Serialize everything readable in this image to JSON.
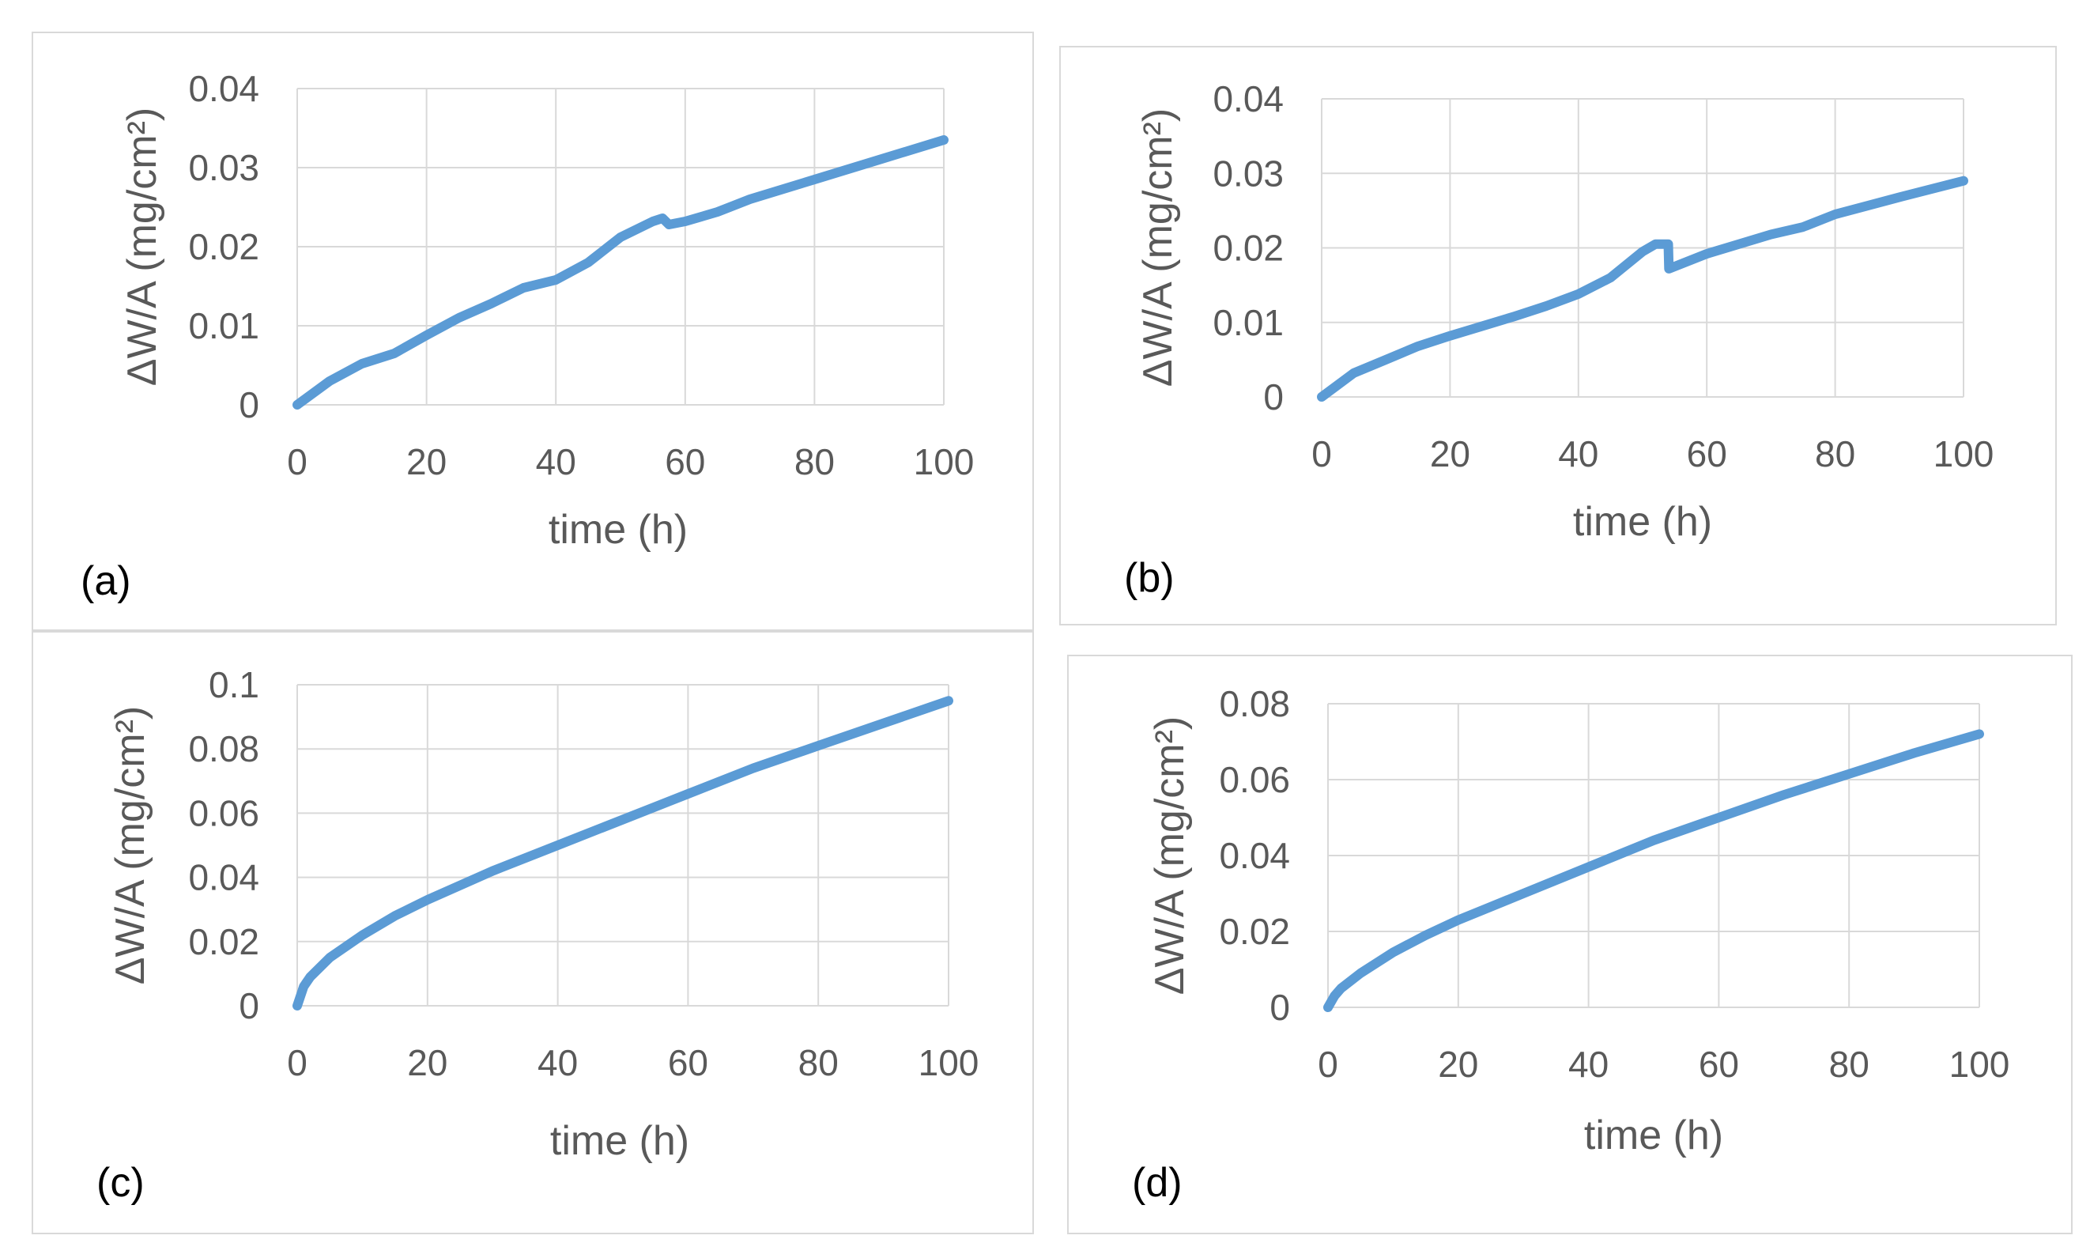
{
  "chart_data": [
    {
      "type": "line",
      "panel_label": "(a)",
      "xlabel": "time (h)",
      "ylabel": "ΔW/A (mg/cm²)",
      "xlim": [
        0,
        100
      ],
      "ylim": [
        0,
        0.04
      ],
      "x_ticks": [
        "0",
        "20",
        "40",
        "60",
        "80",
        "100"
      ],
      "y_ticks": [
        "0",
        "0.01",
        "0.02",
        "0.03",
        "0.04"
      ],
      "series": [
        {
          "name": "ΔW/A",
          "color": "#5b9bd5",
          "x": [
            0,
            5,
            10,
            15,
            20,
            25,
            30,
            35,
            40,
            45,
            50,
            55,
            56.5,
            57.5,
            60,
            65,
            70,
            80,
            90,
            100
          ],
          "y": [
            0,
            0.003,
            0.0052,
            0.0065,
            0.0088,
            0.011,
            0.0128,
            0.0148,
            0.0158,
            0.018,
            0.0212,
            0.0232,
            0.0236,
            0.0228,
            0.0232,
            0.0244,
            0.026,
            0.0285,
            0.031,
            0.0335
          ]
        }
      ]
    },
    {
      "type": "line",
      "panel_label": "(b)",
      "xlabel": "time (h)",
      "ylabel": "ΔW/A (mg/cm²)",
      "xlim": [
        0,
        100
      ],
      "ylim": [
        0,
        0.04
      ],
      "x_ticks": [
        "0",
        "20",
        "40",
        "60",
        "80",
        "100"
      ],
      "y_ticks": [
        "0",
        "0.01",
        "0.02",
        "0.03",
        "0.04"
      ],
      "series": [
        {
          "name": "ΔW/A",
          "color": "#5b9bd5",
          "x": [
            0,
            5,
            10,
            15,
            20,
            25,
            30,
            35,
            40,
            45,
            50,
            52,
            54,
            54.1,
            60,
            65,
            70,
            75,
            80,
            90,
            100
          ],
          "y": [
            0,
            0.0032,
            0.005,
            0.0068,
            0.0082,
            0.0095,
            0.0108,
            0.0122,
            0.0138,
            0.016,
            0.0195,
            0.0205,
            0.0205,
            0.0172,
            0.0192,
            0.0205,
            0.0218,
            0.0228,
            0.0245,
            0.0268,
            0.029
          ]
        }
      ]
    },
    {
      "type": "line",
      "panel_label": "(c)",
      "xlabel": "time (h)",
      "ylabel": "ΔW/A (mg/cm²)",
      "xlim": [
        0,
        100
      ],
      "ylim": [
        0,
        0.1
      ],
      "x_ticks": [
        "0",
        "20",
        "40",
        "60",
        "80",
        "100"
      ],
      "y_ticks": [
        "0",
        "0.02",
        "0.04",
        "0.06",
        "0.08",
        "0.1"
      ],
      "series": [
        {
          "name": "ΔW/A",
          "color": "#5b9bd5",
          "x": [
            0,
            1,
            2,
            5,
            10,
            15,
            20,
            30,
            40,
            50,
            60,
            70,
            80,
            90,
            100
          ],
          "y": [
            0,
            0.006,
            0.009,
            0.015,
            0.022,
            0.028,
            0.033,
            0.042,
            0.05,
            0.058,
            0.066,
            0.074,
            0.081,
            0.088,
            0.095
          ]
        }
      ]
    },
    {
      "type": "line",
      "panel_label": "(d)",
      "xlabel": "time (h)",
      "ylabel": "ΔW/A (mg/cm²)",
      "xlim": [
        0,
        100
      ],
      "ylim": [
        0,
        0.08
      ],
      "x_ticks": [
        "0",
        "20",
        "40",
        "60",
        "80",
        "100"
      ],
      "y_ticks": [
        "0",
        "0.02",
        "0.04",
        "0.06",
        "0.08"
      ],
      "series": [
        {
          "name": "ΔW/A",
          "color": "#5b9bd5",
          "x": [
            0,
            1,
            2,
            5,
            10,
            15,
            20,
            30,
            40,
            50,
            60,
            70,
            80,
            90,
            100
          ],
          "y": [
            0,
            0.003,
            0.005,
            0.009,
            0.0145,
            0.019,
            0.023,
            0.03,
            0.037,
            0.044,
            0.05,
            0.056,
            0.0615,
            0.067,
            0.072
          ]
        }
      ]
    }
  ]
}
